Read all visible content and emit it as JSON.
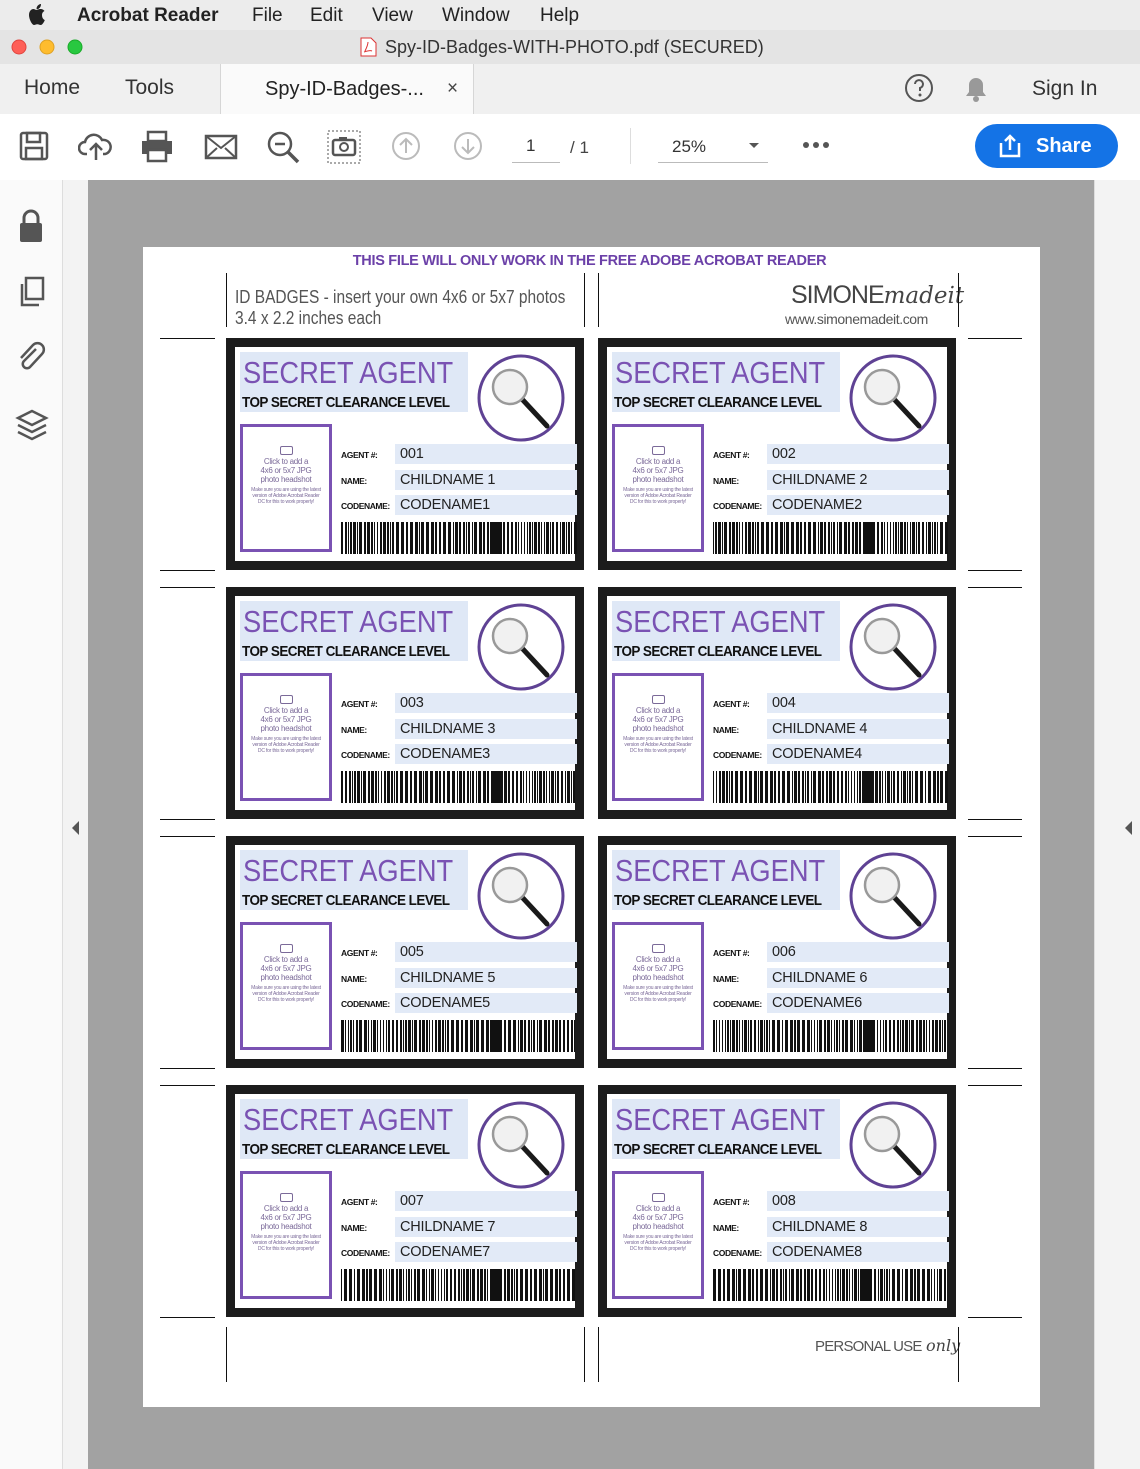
{
  "menu_bar": {
    "app": "Acrobat Reader",
    "items": [
      "File",
      "Edit",
      "View",
      "Window",
      "Help"
    ]
  },
  "window_title": "Spy-ID-Badges-WITH-PHOTO.pdf (SECURED)",
  "tabs": {
    "home": "Home",
    "tools": "Tools",
    "document": "Spy-ID-Badges-...",
    "close": "×"
  },
  "sign_in": "Sign In",
  "toolbar": {
    "page": "1",
    "page_total": "/ 1",
    "zoom": "25%",
    "share": "Share"
  },
  "document": {
    "notice": "THIS FILE WILL ONLY WORK IN THE FREE ADOBE ACROBAT READER",
    "header_lines": [
      "ID BADGES - insert your own 4x6 or 5x7 photos",
      "3.4 x 2.2 inches each"
    ],
    "brand": "SIMONE",
    "brand_script": "madeit",
    "website": "www.simonemadeit.com",
    "footer": "PERSONAL USE",
    "footer_script": "only",
    "badge_template": {
      "title": "SECRET AGENT",
      "clearance": "TOP SECRET CLEARANCE LEVEL",
      "photo_hint": "Click to add a 4x6 or 5x7 JPG photo headshot",
      "photo_note": "Make sure you are using the latest version of Adobe Acrobat Reader DC for this to work properly!",
      "field_labels": [
        "AGENT #:",
        "NAME:",
        "CODENAME:"
      ]
    },
    "badges": [
      {
        "agent_no": "001",
        "name": "CHILDNAME 1",
        "codename": "CODENAME1"
      },
      {
        "agent_no": "002",
        "name": "CHILDNAME 2",
        "codename": "CODENAME2"
      },
      {
        "agent_no": "003",
        "name": "CHILDNAME 3",
        "codename": "CODENAME3"
      },
      {
        "agent_no": "004",
        "name": "CHILDNAME 4",
        "codename": "CODENAME4"
      },
      {
        "agent_no": "005",
        "name": "CHILDNAME 5",
        "codename": "CODENAME5"
      },
      {
        "agent_no": "006",
        "name": "CHILDNAME 6",
        "codename": "CODENAME6"
      },
      {
        "agent_no": "007",
        "name": "CHILDNAME 7",
        "codename": "CODENAME7"
      },
      {
        "agent_no": "008",
        "name": "CHILDNAME 8",
        "codename": "CODENAME8"
      }
    ]
  }
}
